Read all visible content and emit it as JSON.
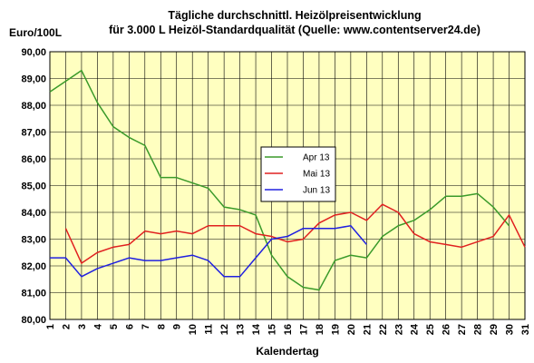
{
  "chart_data": {
    "type": "line",
    "title": "Tägliche durchschnittl. Heizölpreisentwicklung",
    "subtitle": "für 3.000 L Heizöl-Standardqualität (Quelle: www.contentserver24.de)",
    "ylabel": "Euro/100L",
    "xlabel": "Kalendertag",
    "ylim": [
      80,
      90
    ],
    "yticks": [
      "80,00",
      "81,00",
      "82,00",
      "83,00",
      "84,00",
      "85,00",
      "86,00",
      "87,00",
      "88,00",
      "89,00",
      "90,00"
    ],
    "x": [
      1,
      2,
      3,
      4,
      5,
      6,
      7,
      8,
      9,
      10,
      11,
      12,
      13,
      14,
      15,
      16,
      17,
      18,
      19,
      20,
      21,
      22,
      23,
      24,
      25,
      26,
      27,
      28,
      29,
      30,
      31
    ],
    "grid": true,
    "legend_position": "center",
    "series": [
      {
        "name": "Apr 13",
        "color": "#3a9a2a",
        "values": [
          88.5,
          88.9,
          89.3,
          88.1,
          87.2,
          86.8,
          86.5,
          85.3,
          85.3,
          85.1,
          84.9,
          84.2,
          84.1,
          83.9,
          82.4,
          81.6,
          81.2,
          81.1,
          82.2,
          82.4,
          82.3,
          83.1,
          83.5,
          83.7,
          84.1,
          84.6,
          84.6,
          84.7,
          84.2,
          83.5,
          null
        ]
      },
      {
        "name": "Mai 13",
        "color": "#e02020",
        "values": [
          null,
          83.4,
          82.1,
          82.5,
          82.7,
          82.8,
          83.3,
          83.2,
          83.3,
          83.2,
          83.5,
          83.5,
          83.5,
          83.2,
          83.1,
          82.9,
          83.0,
          83.6,
          83.9,
          84.0,
          83.7,
          84.3,
          84.0,
          83.2,
          82.9,
          82.8,
          82.7,
          82.9,
          83.1,
          83.9,
          82.7
        ]
      },
      {
        "name": "Jun 13",
        "color": "#2020e0",
        "values": [
          82.3,
          82.3,
          81.6,
          81.9,
          82.1,
          82.3,
          82.2,
          82.2,
          82.3,
          82.4,
          82.2,
          81.6,
          81.6,
          82.3,
          83.0,
          83.1,
          83.4,
          83.4,
          83.4,
          83.5,
          82.8,
          null,
          null,
          null,
          null,
          null,
          null,
          null,
          null,
          null,
          null
        ]
      }
    ]
  }
}
